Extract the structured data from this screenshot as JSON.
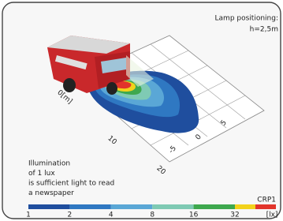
{
  "header": {
    "title": "Lamp positioning:",
    "height": "h=2,5m"
  },
  "note": {
    "lines": [
      "Illumination",
      "of 1 lux",
      "is sufficient light to read",
      "a newspaper"
    ]
  },
  "model": "CRP1",
  "axes": {
    "distance_labels": [
      "0[m]",
      "10",
      "20"
    ],
    "lateral_labels": [
      "5",
      "0",
      "-5"
    ]
  },
  "legend": {
    "labels": [
      "1",
      "2",
      "4",
      "8",
      "16",
      "32"
    ],
    "unit": "[lx]",
    "colors": [
      "#1f4e9e",
      "#2f78c2",
      "#5aa7d6",
      "#7fcab4",
      "#3ea84e",
      "#f2d21b",
      "#e2342b"
    ]
  }
}
